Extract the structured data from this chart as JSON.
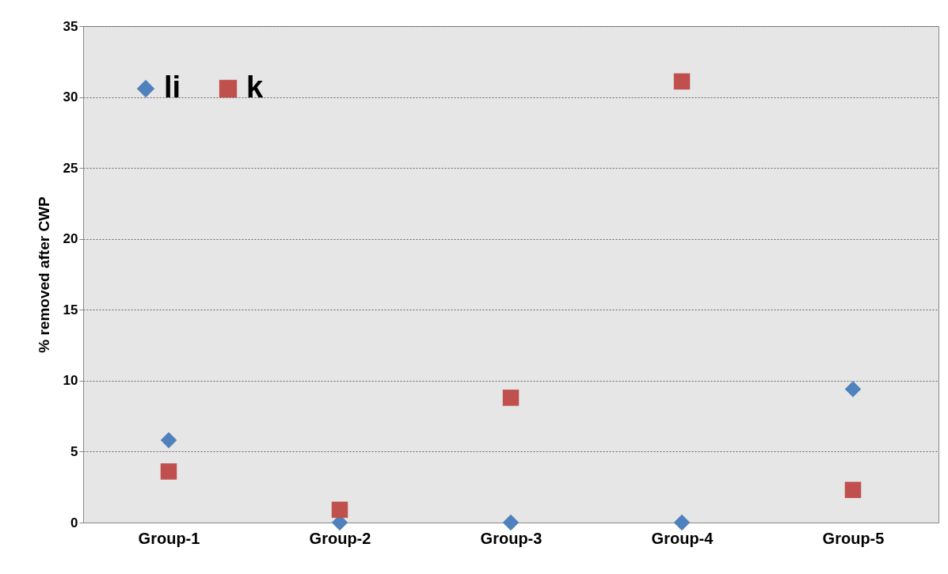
{
  "chart_data": {
    "type": "scatter",
    "ylabel": "% removed after CWP",
    "categories": [
      "Group-1",
      "Group-2",
      "Group-3",
      "Group-4",
      "Group-5"
    ],
    "series": [
      {
        "name": "li",
        "color": "#4f81bd",
        "marker": "diamond",
        "values": [
          5.8,
          0,
          0,
          0,
          9.4
        ]
      },
      {
        "name": "k",
        "color": "#c0504d",
        "marker": "square",
        "values": [
          3.6,
          0.9,
          8.8,
          31.1,
          2.3
        ]
      }
    ],
    "ylim": [
      0,
      35
    ],
    "yticks": [
      0,
      5,
      10,
      15,
      20,
      25,
      30,
      35
    ],
    "grid": "y",
    "legend": "top left"
  }
}
